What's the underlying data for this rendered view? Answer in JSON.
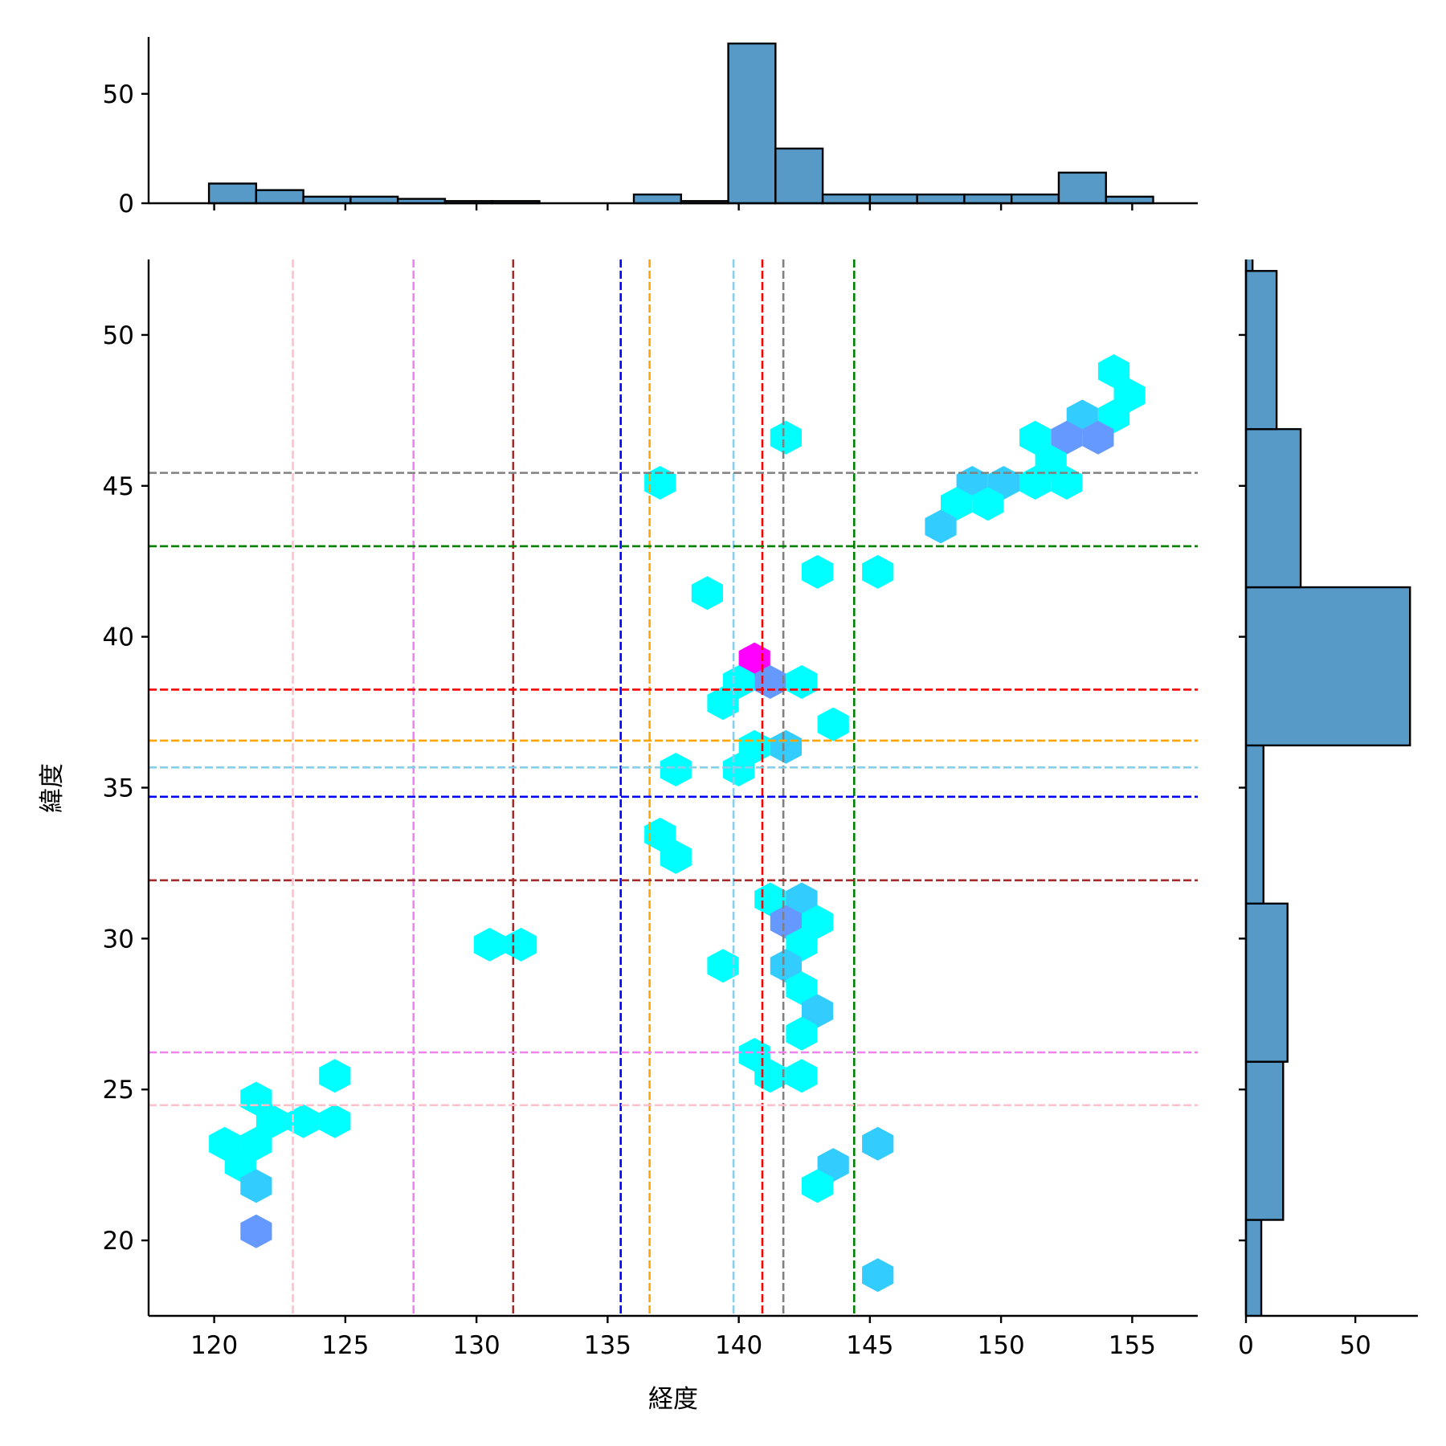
{
  "chart_data": {
    "type": "hexbin-jointplot",
    "xlabel": "経度",
    "ylabel": "緯度",
    "xlim": [
      117.5,
      157.5
    ],
    "ylim": [
      17.5,
      52.5
    ],
    "xticks": [
      120,
      125,
      130,
      135,
      140,
      145,
      150,
      155
    ],
    "yticks": [
      20,
      25,
      30,
      35,
      40,
      45,
      50
    ],
    "grid": false,
    "colormap": "cool",
    "hexbins": [
      {
        "lon": 154.3,
        "lat": 48.8,
        "count": 1
      },
      {
        "lon": 154.9,
        "lat": 48.0,
        "count": 1
      },
      {
        "lon": 154.3,
        "lat": 47.3,
        "count": 1
      },
      {
        "lon": 153.1,
        "lat": 47.3,
        "count": 2
      },
      {
        "lon": 152.5,
        "lat": 46.6,
        "count": 3
      },
      {
        "lon": 153.7,
        "lat": 46.6,
        "count": 3
      },
      {
        "lon": 151.3,
        "lat": 46.6,
        "count": 1
      },
      {
        "lon": 151.9,
        "lat": 45.8,
        "count": 1
      },
      {
        "lon": 151.3,
        "lat": 45.1,
        "count": 1
      },
      {
        "lon": 152.5,
        "lat": 45.1,
        "count": 1
      },
      {
        "lon": 150.1,
        "lat": 45.1,
        "count": 2
      },
      {
        "lon": 148.9,
        "lat": 45.1,
        "count": 2
      },
      {
        "lon": 149.5,
        "lat": 44.4,
        "count": 1
      },
      {
        "lon": 148.3,
        "lat": 44.4,
        "count": 1
      },
      {
        "lon": 147.7,
        "lat": 43.65,
        "count": 2
      },
      {
        "lon": 141.8,
        "lat": 46.6,
        "count": 1
      },
      {
        "lon": 137.0,
        "lat": 45.1,
        "count": 1
      },
      {
        "lon": 143.0,
        "lat": 42.15,
        "count": 1
      },
      {
        "lon": 145.3,
        "lat": 42.15,
        "count": 1
      },
      {
        "lon": 138.8,
        "lat": 41.45,
        "count": 1
      },
      {
        "lon": 140.6,
        "lat": 39.25,
        "count": 6
      },
      {
        "lon": 141.2,
        "lat": 38.5,
        "count": 3
      },
      {
        "lon": 140.0,
        "lat": 38.5,
        "count": 1
      },
      {
        "lon": 142.4,
        "lat": 38.5,
        "count": 1
      },
      {
        "lon": 139.4,
        "lat": 37.8,
        "count": 1
      },
      {
        "lon": 143.6,
        "lat": 37.1,
        "count": 1
      },
      {
        "lon": 140.6,
        "lat": 36.35,
        "count": 1
      },
      {
        "lon": 141.8,
        "lat": 36.35,
        "count": 2
      },
      {
        "lon": 137.6,
        "lat": 35.6,
        "count": 1
      },
      {
        "lon": 140.0,
        "lat": 35.6,
        "count": 1
      },
      {
        "lon": 137.0,
        "lat": 33.45,
        "count": 1
      },
      {
        "lon": 137.6,
        "lat": 32.7,
        "count": 1
      },
      {
        "lon": 141.2,
        "lat": 31.3,
        "count": 1
      },
      {
        "lon": 142.4,
        "lat": 31.3,
        "count": 2
      },
      {
        "lon": 141.8,
        "lat": 30.55,
        "count": 3
      },
      {
        "lon": 143.0,
        "lat": 30.55,
        "count": 1
      },
      {
        "lon": 142.4,
        "lat": 29.8,
        "count": 1
      },
      {
        "lon": 130.5,
        "lat": 29.8,
        "count": 1
      },
      {
        "lon": 131.7,
        "lat": 29.8,
        "count": 1
      },
      {
        "lon": 139.4,
        "lat": 29.1,
        "count": 1
      },
      {
        "lon": 141.8,
        "lat": 29.1,
        "count": 2
      },
      {
        "lon": 142.4,
        "lat": 28.35,
        "count": 1
      },
      {
        "lon": 143.0,
        "lat": 27.6,
        "count": 2
      },
      {
        "lon": 142.4,
        "lat": 26.85,
        "count": 1
      },
      {
        "lon": 140.6,
        "lat": 26.15,
        "count": 1
      },
      {
        "lon": 141.2,
        "lat": 25.45,
        "count": 1
      },
      {
        "lon": 142.4,
        "lat": 25.45,
        "count": 1
      },
      {
        "lon": 124.6,
        "lat": 25.45,
        "count": 1
      },
      {
        "lon": 121.6,
        "lat": 24.7,
        "count": 1
      },
      {
        "lon": 122.2,
        "lat": 23.95,
        "count": 1
      },
      {
        "lon": 123.4,
        "lat": 23.95,
        "count": 1
      },
      {
        "lon": 124.6,
        "lat": 23.95,
        "count": 1
      },
      {
        "lon": 120.4,
        "lat": 23.2,
        "count": 1
      },
      {
        "lon": 121.6,
        "lat": 23.2,
        "count": 1
      },
      {
        "lon": 121.0,
        "lat": 22.5,
        "count": 1
      },
      {
        "lon": 121.6,
        "lat": 21.8,
        "count": 2
      },
      {
        "lon": 121.6,
        "lat": 20.3,
        "count": 3
      },
      {
        "lon": 145.3,
        "lat": 23.2,
        "count": 2
      },
      {
        "lon": 143.6,
        "lat": 22.5,
        "count": 2
      },
      {
        "lon": 143.0,
        "lat": 21.8,
        "count": 1
      },
      {
        "lon": 145.3,
        "lat": 18.85,
        "count": 2
      }
    ],
    "vlines": [
      {
        "lon": 123.0,
        "color": "#ffc0cb"
      },
      {
        "lon": 127.6,
        "color": "#ee82ee"
      },
      {
        "lon": 131.4,
        "color": "#a52a2a"
      },
      {
        "lon": 135.5,
        "color": "#0000ff"
      },
      {
        "lon": 136.6,
        "color": "#ffa500"
      },
      {
        "lon": 139.8,
        "color": "#87ceeb"
      },
      {
        "lon": 140.9,
        "color": "#ff0000"
      },
      {
        "lon": 141.7,
        "color": "#808080"
      },
      {
        "lon": 144.4,
        "color": "#008000"
      }
    ],
    "hlines": [
      {
        "lat": 45.43,
        "color": "#808080"
      },
      {
        "lat": 43.0,
        "color": "#008000"
      },
      {
        "lat": 38.25,
        "color": "#ff0000"
      },
      {
        "lat": 36.56,
        "color": "#ffa500"
      },
      {
        "lat": 35.67,
        "color": "#87ceeb"
      },
      {
        "lat": 34.7,
        "color": "#0000ff"
      },
      {
        "lat": 31.93,
        "color": "#a52a2a"
      },
      {
        "lat": 26.23,
        "color": "#ee82ee"
      },
      {
        "lat": 24.48,
        "color": "#ffc0cb"
      }
    ],
    "top_hist": {
      "bin_start": 119.8,
      "bin_width": 1.8,
      "counts": [
        9,
        6,
        3,
        3,
        2,
        1,
        1,
        0,
        0,
        4,
        1,
        73,
        25,
        4,
        4,
        4,
        4,
        4,
        14,
        3
      ],
      "ylim": [
        0,
        76
      ],
      "yticks": [
        0,
        50
      ]
    },
    "right_hist": {
      "bin_start": 15.44,
      "bin_width": 5.24,
      "counts": [
        7,
        17,
        19,
        8,
        75,
        25,
        14,
        3
      ],
      "xlim": [
        0,
        78.6
      ],
      "xticks": [
        0,
        50
      ]
    },
    "hist_color": "#5799c7"
  }
}
